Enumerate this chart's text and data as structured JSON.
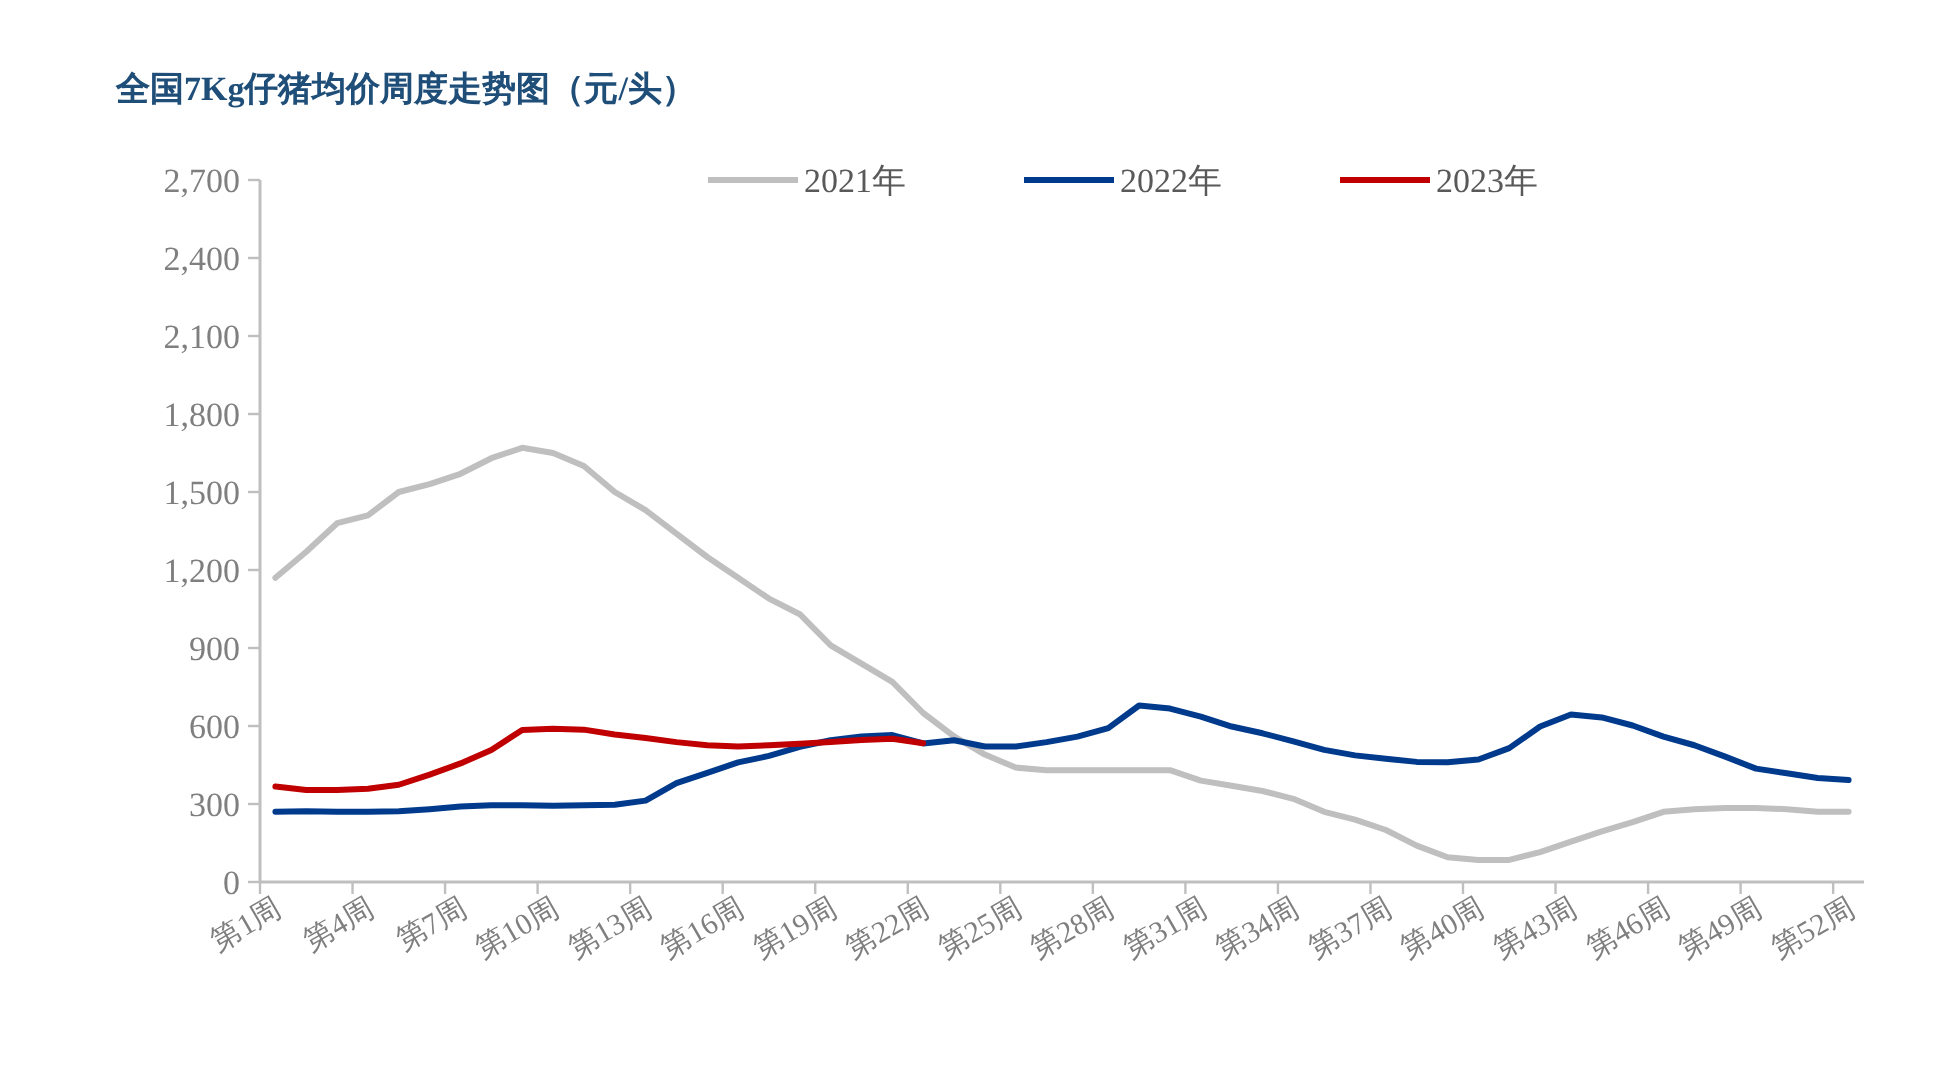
{
  "chart_data": {
    "type": "line",
    "title": "全国7Kg仔猪均价周度走势图（元/头）",
    "categories": [
      "第1周",
      null,
      null,
      "第4周",
      null,
      null,
      "第7周",
      null,
      null,
      "第10周",
      null,
      null,
      "第13周",
      null,
      null,
      "第16周",
      null,
      null,
      "第19周",
      null,
      null,
      "第22周",
      null,
      null,
      "第25周",
      null,
      null,
      "第28周",
      null,
      null,
      "第31周",
      null,
      null,
      "第34周",
      null,
      null,
      "第37周",
      null,
      null,
      "第40周",
      null,
      null,
      "第43周",
      null,
      null,
      "第46周",
      null,
      null,
      "第49周",
      null,
      null,
      "第52周"
    ],
    "series": [
      {
        "name": "2021年",
        "color": "#bfbfbf",
        "values": [
          1170,
          1270,
          1380,
          1410,
          1500,
          1530,
          1570,
          1630,
          1670,
          1650,
          1600,
          1500,
          1430,
          1340,
          1250,
          1170,
          1090,
          1030,
          910,
          840,
          770,
          650,
          560,
          490,
          440,
          430,
          430,
          430,
          430,
          430,
          390,
          370,
          350,
          320,
          270,
          240,
          200,
          140,
          95,
          85,
          85,
          115,
          155,
          195,
          230,
          270,
          280,
          285,
          285,
          280,
          270,
          270
        ]
      },
      {
        "name": "2022年",
        "color": "#003a8c",
        "values": [
          270,
          272,
          270,
          270,
          272,
          280,
          290,
          295,
          295,
          293,
          295,
          297,
          313,
          380,
          420,
          460,
          485,
          520,
          545,
          560,
          565,
          533,
          545,
          521,
          521,
          538,
          559,
          592,
          679,
          667,
          636,
          598,
          572,
          541,
          508,
          487,
          474,
          462,
          461,
          471,
          515,
          598,
          644,
          633,
          602,
          559,
          526,
          482,
          436,
          418,
          400,
          392
        ]
      },
      {
        "name": "2023年",
        "color": "#c00000",
        "values": [
          367,
          354,
          354,
          359,
          374,
          413,
          456,
          508,
          585,
          589,
          586,
          567,
          554,
          538,
          526,
          521,
          526,
          532,
          538,
          546,
          551,
          534,
          null,
          null,
          null,
          null,
          null,
          null,
          null,
          null,
          null,
          null,
          null,
          null,
          null,
          null,
          null,
          null,
          null,
          null,
          null,
          null,
          null,
          null,
          null,
          null,
          null,
          null,
          null,
          null,
          null,
          null
        ]
      }
    ],
    "ylim": [
      0,
      2700
    ],
    "yticks": [
      0,
      300,
      600,
      900,
      {
        "value": 1200,
        "label": "1,200"
      },
      {
        "value": 1500,
        "label": "1,500"
      },
      {
        "value": 1800,
        "label": "1,800"
      },
      {
        "value": 2100,
        "label": "2,100"
      },
      {
        "value": 2400,
        "label": "2,400"
      },
      {
        "value": 2700,
        "label": "2,700"
      }
    ],
    "legend": "top"
  }
}
